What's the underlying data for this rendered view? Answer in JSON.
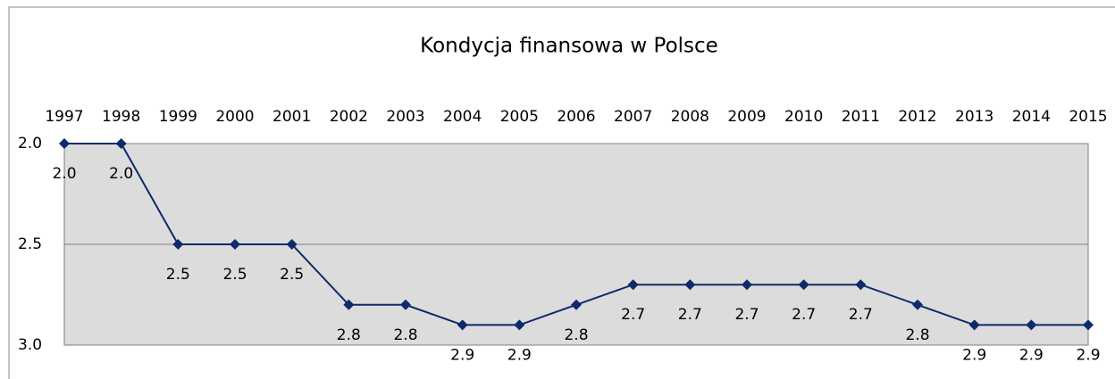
{
  "chart_data": {
    "type": "line",
    "title": "Kondycja finansowa w Polsce",
    "categories": [
      "1997",
      "1998",
      "1999",
      "2000",
      "2001",
      "2002",
      "2003",
      "2004",
      "2005",
      "2006",
      "2007",
      "2008",
      "2009",
      "2010",
      "2011",
      "2012",
      "2013",
      "2014",
      "2015"
    ],
    "series": [
      {
        "color": "#0d2a6b",
        "values": [
          2.0,
          2.0,
          2.5,
          2.5,
          2.5,
          2.8,
          2.8,
          2.9,
          2.9,
          2.8,
          2.7,
          2.7,
          2.7,
          2.7,
          2.7,
          2.8,
          2.9,
          2.9,
          2.9
        ],
        "value_labels": [
          "2.0",
          "2.0",
          "2.5",
          "2.5",
          "2.5",
          "2.8",
          "2.8",
          "2.9",
          "2.9",
          "2.8",
          "2.7",
          "2.7",
          "2.7",
          "2.7",
          "2.7",
          "2.8",
          "2.9",
          "2.9",
          "2.9"
        ]
      }
    ],
    "ylim": [
      2,
      3
    ],
    "y_inverted": true,
    "yticks": [
      {
        "value": 2,
        "label": "2.0"
      },
      {
        "value": 2.5,
        "label": "2.5"
      },
      {
        "value": 3,
        "label": "3.0"
      }
    ],
    "grid": true
  }
}
